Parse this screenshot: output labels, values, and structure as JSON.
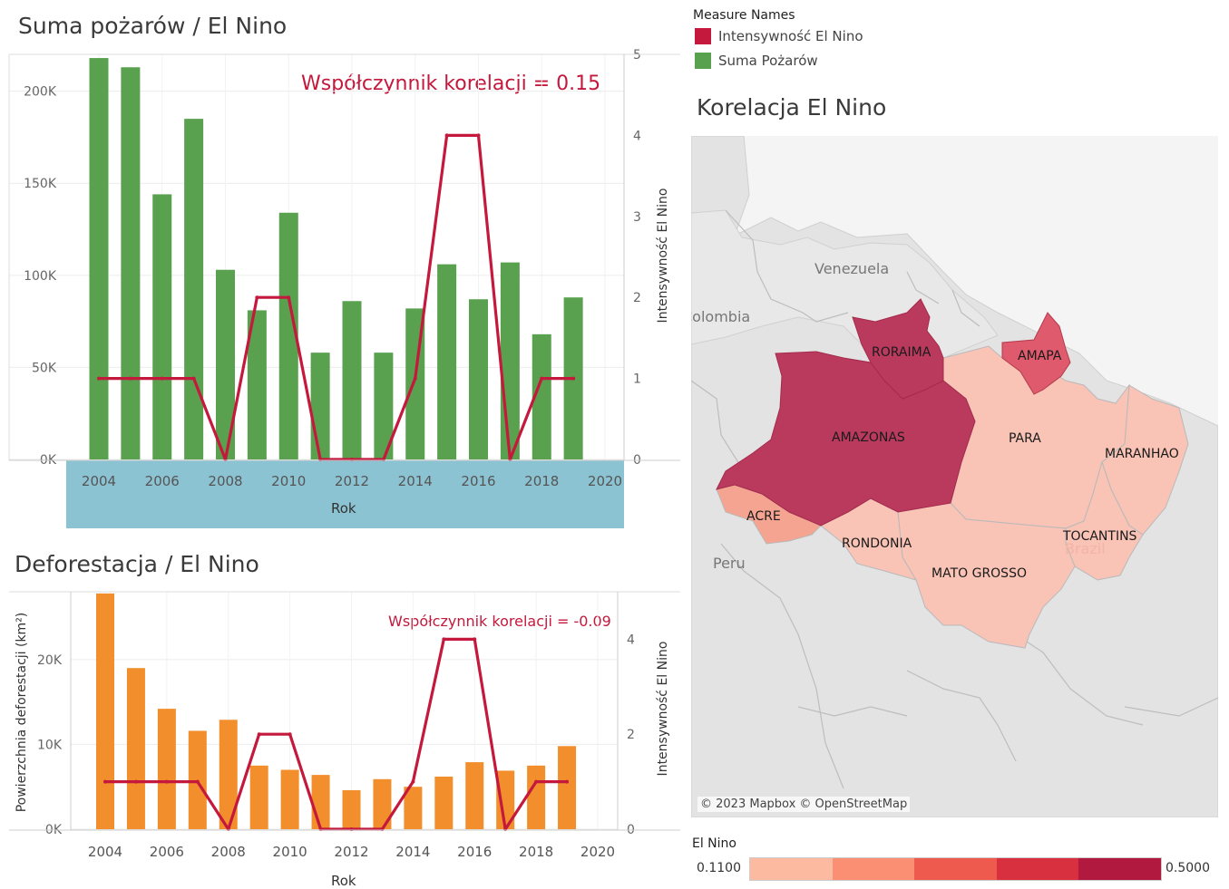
{
  "chart1": {
    "title": "Suma pożarów / El Nino",
    "correlation": "Współczynnik korelacji = 0.15",
    "xlabel": "Rok",
    "y2label": "Intensywność El Nino"
  },
  "chart2": {
    "title": "Deforestacja / El Nino",
    "correlation": "Współczynnik korelacji = -0.09",
    "xlabel": "Rok",
    "ylabel": "Powierzchnia deforestacji (km²)",
    "y2label": "Intensywność El Nino"
  },
  "legend": {
    "title": "Measure Names",
    "items": [
      {
        "label": "Intensywność El Nino",
        "color": "#c4183c"
      },
      {
        "label": "Suma Pożarów",
        "color": "#59a14f"
      }
    ]
  },
  "map": {
    "title": "Korelacja El Nino",
    "attribution": "© 2023 Mapbox © OpenStreetMap",
    "states": [
      {
        "name": "RORAIMA",
        "value": 0.5
      },
      {
        "name": "AMAPA",
        "value": 0.4
      },
      {
        "name": "AMAZONAS",
        "value": 0.5
      },
      {
        "name": "PARA",
        "value": 0.11
      },
      {
        "name": "MARANHAO",
        "value": 0.11
      },
      {
        "name": "ACRE",
        "value": 0.25
      },
      {
        "name": "RONDONIA",
        "value": 0.11
      },
      {
        "name": "MATO GROSSO",
        "value": 0.11
      },
      {
        "name": "TOCANTINS",
        "value": 0.11
      }
    ],
    "countries": [
      "Venezuela",
      "Colombia",
      "Peru",
      "Brazil"
    ],
    "color_legend": {
      "title": "El Nino",
      "min": "0.1100",
      "max": "0.5000",
      "colors": [
        "#fcbba1",
        "#fb8f73",
        "#ef5a4f",
        "#d8303e",
        "#b11a3e"
      ]
    }
  },
  "chart_data": [
    {
      "type": "bar",
      "title": "Suma pożarów / El Nino",
      "xlabel": "Rok",
      "ylabel": "",
      "y2label": "Intensywność El Nino",
      "x": [
        2004,
        2005,
        2006,
        2007,
        2008,
        2009,
        2010,
        2011,
        2012,
        2013,
        2014,
        2015,
        2016,
        2017,
        2018,
        2019
      ],
      "x_ticks": [
        2004,
        2006,
        2008,
        2010,
        2012,
        2014,
        2016,
        2018,
        2020
      ],
      "y_ticks": [
        "0K",
        "50K",
        "100K",
        "150K",
        "200K"
      ],
      "y_tick_values": [
        0,
        50000,
        100000,
        150000,
        200000
      ],
      "y2_ticks": [
        0,
        1,
        2,
        3,
        4,
        5
      ],
      "ylim": [
        0,
        220000
      ],
      "y2lim": [
        0,
        5
      ],
      "series": [
        {
          "name": "Suma Pożarów",
          "kind": "bar",
          "color": "#59a14f",
          "values": [
            218000,
            213000,
            144000,
            185000,
            103000,
            81000,
            134000,
            58000,
            86000,
            58000,
            82000,
            106000,
            87000,
            107000,
            68000,
            88000
          ]
        },
        {
          "name": "Intensywność El Nino",
          "kind": "line",
          "axis": "y2",
          "color": "#c4183c",
          "values": [
            1,
            1,
            1,
            1,
            0,
            2,
            2,
            0,
            0,
            0,
            1,
            4,
            4,
            0,
            1,
            1
          ]
        }
      ]
    },
    {
      "type": "bar",
      "title": "Deforestacja / El Nino",
      "xlabel": "Rok",
      "ylabel": "Powierzchnia deforestacji (km²)",
      "y2label": "Intensywność El Nino",
      "x": [
        2004,
        2005,
        2006,
        2007,
        2008,
        2009,
        2010,
        2011,
        2012,
        2013,
        2014,
        2015,
        2016,
        2017,
        2018,
        2019
      ],
      "x_ticks": [
        2004,
        2006,
        2008,
        2010,
        2012,
        2014,
        2016,
        2018,
        2020
      ],
      "y_ticks": [
        "0K",
        "10K",
        "20K"
      ],
      "y_tick_values": [
        0,
        10000,
        20000
      ],
      "y2_ticks": [
        0,
        2,
        4
      ],
      "ylim": [
        0,
        28000
      ],
      "y2lim": [
        0,
        5
      ],
      "series": [
        {
          "name": "Powierzchnia deforestacji (km²)",
          "kind": "bar",
          "color": "#f28e2b",
          "values": [
            27800,
            19000,
            14200,
            11600,
            12900,
            7500,
            7000,
            6400,
            4600,
            5900,
            5000,
            6200,
            7900,
            6900,
            7500,
            9800
          ]
        },
        {
          "name": "Intensywność El Nino",
          "kind": "line",
          "axis": "y2",
          "color": "#c4183c",
          "values": [
            1,
            1,
            1,
            1,
            0,
            2,
            2,
            0,
            0,
            0,
            1,
            4,
            4,
            0,
            1,
            1
          ]
        }
      ]
    }
  ]
}
